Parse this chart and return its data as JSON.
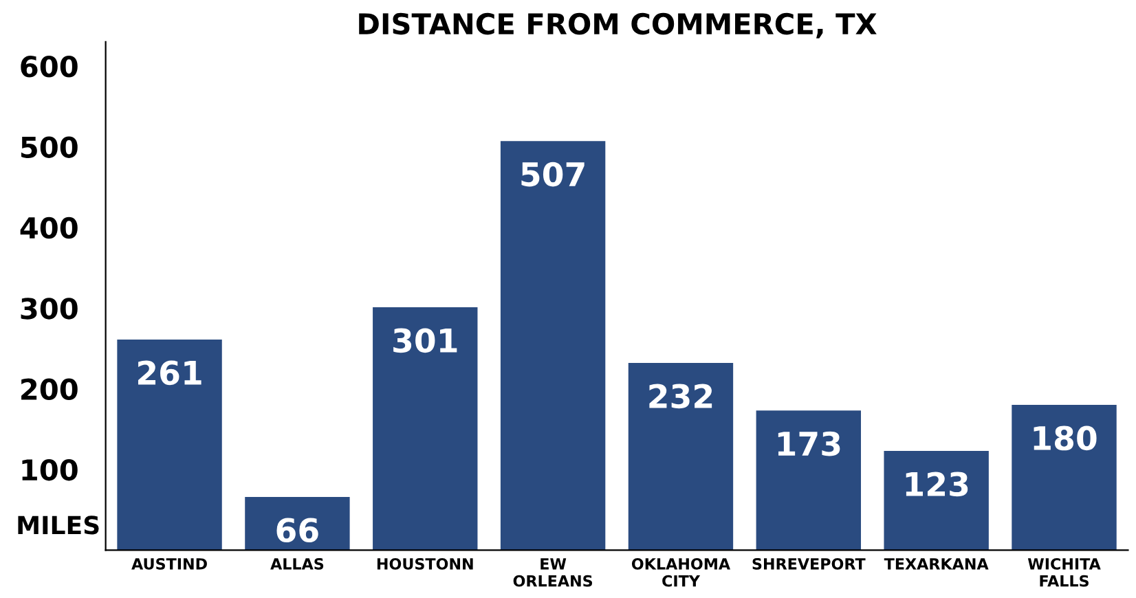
{
  "chart_data": {
    "type": "bar",
    "title": "DISTANCE FROM COMMERCE, TX",
    "ylabel": "MILES",
    "categories": [
      "AUSTIND",
      "ALLAS",
      "HOUSTONN",
      "EW\nORLEANS",
      "OKLAHOMA\nCITY",
      "SHREVEPORT",
      "TEXARKANA",
      "WICHITA\nFALLS"
    ],
    "values": [
      261,
      66,
      301,
      507,
      232,
      173,
      123,
      180
    ],
    "color": "#2a4b80",
    "ylim": [
      0,
      630
    ],
    "yticks": [
      100,
      200,
      300,
      400,
      500,
      600
    ],
    "grid": false,
    "data_labels": true
  }
}
